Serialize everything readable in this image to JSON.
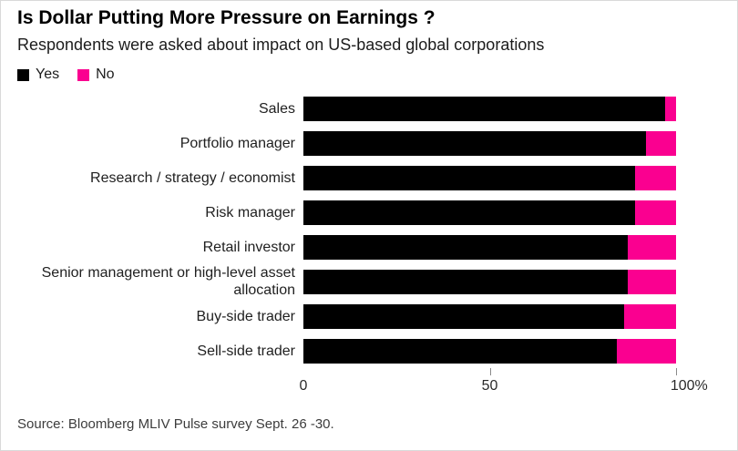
{
  "header": {
    "title": "Is Dollar Putting More Pressure on Earnings ?",
    "subtitle": "Respondents were asked about impact on US-based global corporations"
  },
  "legend": {
    "items": [
      {
        "label": "Yes",
        "color": "#000000"
      },
      {
        "label": "No",
        "color": "#fa0090"
      }
    ]
  },
  "chart_data": {
    "type": "bar",
    "orientation": "horizontal",
    "stacked": true,
    "title": "Is Dollar Putting More Pressure on Earnings ?",
    "subtitle": "Respondents were asked about impact on US-based global corporations",
    "xlabel": "",
    "ylabel": "",
    "xlim": [
      0,
      100
    ],
    "unit": "%",
    "grid": false,
    "legend_position": "top-left",
    "categories": [
      "Sales",
      "Portfolio manager",
      "Research / strategy / economist",
      "Risk manager",
      "Retail investor",
      "Senior management or high-level asset allocation",
      "Buy-side trader",
      "Sell-side trader"
    ],
    "series": [
      {
        "name": "Yes",
        "color": "#000000",
        "values": [
          97,
          92,
          89,
          89,
          87,
          87,
          86,
          84
        ]
      },
      {
        "name": "No",
        "color": "#fa0090",
        "values": [
          3,
          8,
          11,
          11,
          13,
          13,
          14,
          16
        ]
      }
    ],
    "x_ticks": [
      {
        "value": 0,
        "label": "0",
        "mark": false
      },
      {
        "value": 50,
        "label": "50",
        "mark": true
      },
      {
        "value": 100,
        "label": "100%",
        "mark": true
      }
    ]
  },
  "footer": {
    "source": "Source: Bloomberg MLIV Pulse survey Sept. 26 -30."
  }
}
